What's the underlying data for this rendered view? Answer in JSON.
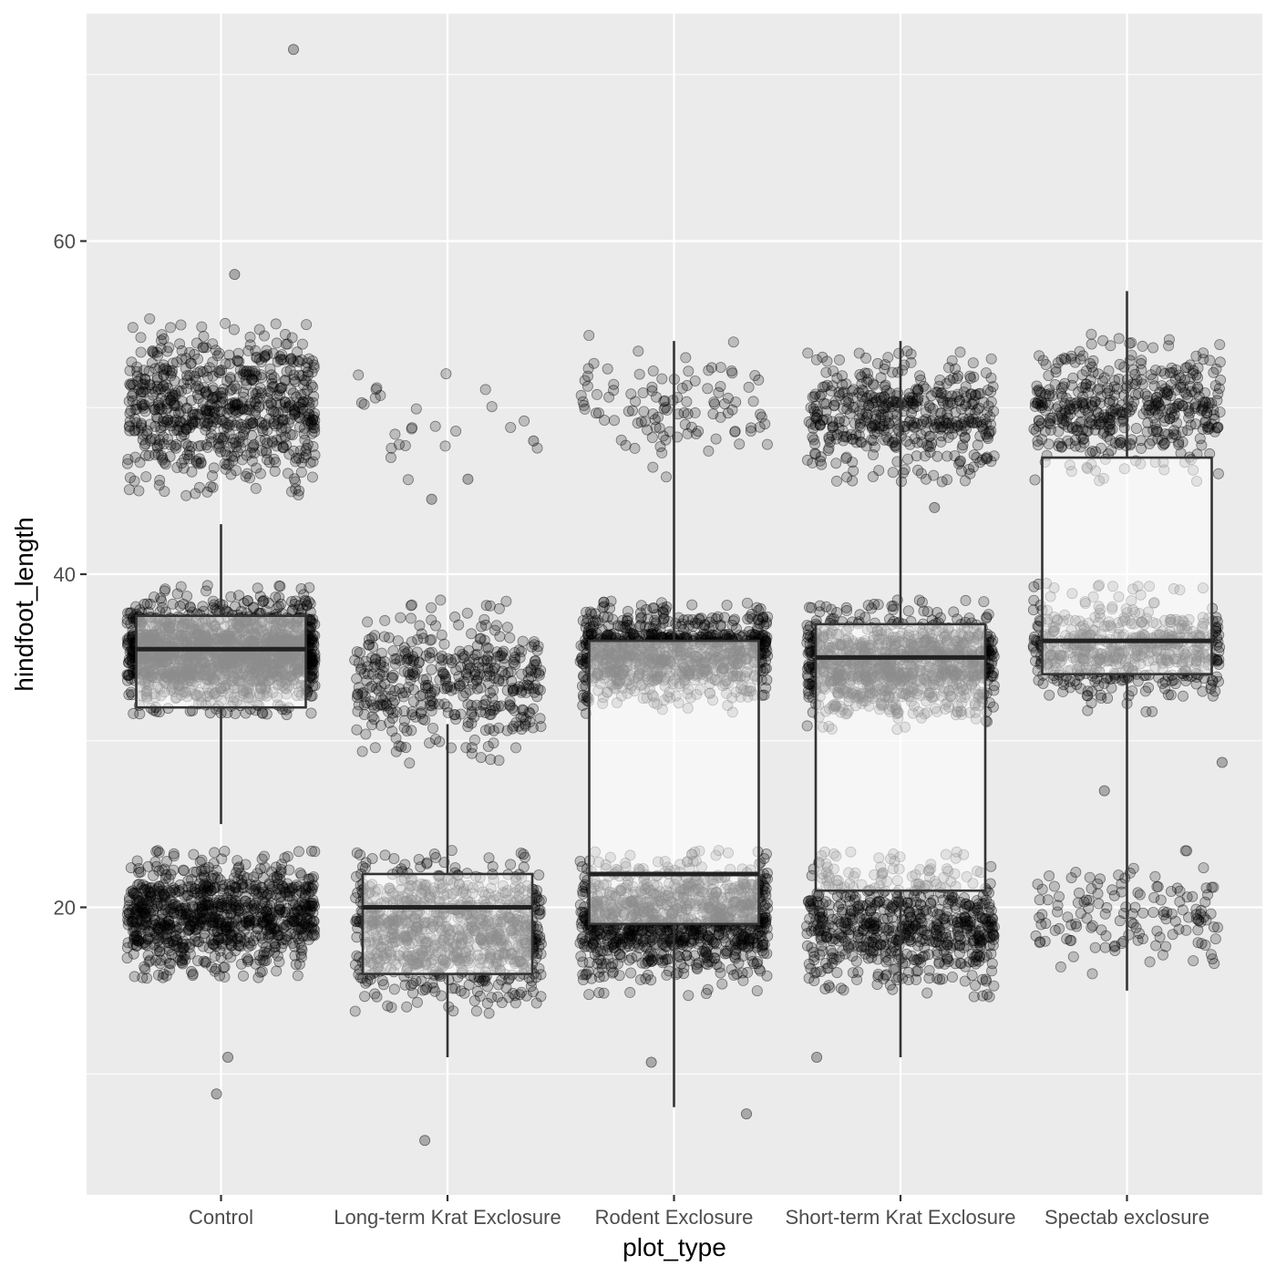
{
  "chart_data": {
    "type": "boxplot",
    "xlabel": "plot_type",
    "ylabel": "hindfoot_length",
    "categories": [
      "Control",
      "Long-term Krat Exclosure",
      "Rodent Exclosure",
      "Short-term Krat Exclosure",
      "Spectab exclosure"
    ],
    "ylim": [
      2,
      73
    ],
    "y_ticks": [
      20,
      40,
      60
    ],
    "y_tick_labels": [
      "20",
      "40",
      "60"
    ],
    "grid": true,
    "panel_background": "#ebebeb",
    "point_color": "#000000",
    "point_alpha": 0.2,
    "boxes": [
      {
        "category": "Control",
        "whisker_low": 25,
        "q1": 32,
        "median": 35.5,
        "q3": 37.5,
        "whisker_high": 43
      },
      {
        "category": "Long-term Krat Exclosure",
        "whisker_low": 11,
        "q1": 16,
        "median": 20,
        "q3": 22,
        "whisker_high": 31
      },
      {
        "category": "Rodent Exclosure",
        "whisker_low": 8,
        "q1": 19,
        "median": 22,
        "q3": 36,
        "whisker_high": 54
      },
      {
        "category": "Short-term Krat Exclosure",
        "whisker_low": 11,
        "q1": 21,
        "median": 35,
        "q3": 37,
        "whisker_high": 54
      },
      {
        "category": "Spectab exclosure",
        "whisker_low": 15,
        "q1": 34,
        "median": 36,
        "q3": 47,
        "whisker_high": 57
      }
    ],
    "point_clusters": [
      {
        "category": "Control",
        "y_center": 50,
        "y_spread": 3.5,
        "count": 700
      },
      {
        "category": "Control",
        "y_center": 35.3,
        "y_spread": 2.2,
        "count": 1600
      },
      {
        "category": "Control",
        "y_center": 19.5,
        "y_spread": 2.6,
        "count": 900
      },
      {
        "category": "Long-term Krat Exclosure",
        "y_center": 49.5,
        "y_spread": 2.5,
        "count": 25
      },
      {
        "category": "Long-term Krat Exclosure",
        "y_center": 33.5,
        "y_spread": 3.2,
        "count": 420
      },
      {
        "category": "Long-term Krat Exclosure",
        "y_center": 18.5,
        "y_spread": 3,
        "count": 900
      },
      {
        "category": "Rodent Exclosure",
        "y_center": 50,
        "y_spread": 2.5,
        "count": 110
      },
      {
        "category": "Rodent Exclosure",
        "y_center": 35.2,
        "y_spread": 2,
        "count": 900
      },
      {
        "category": "Rodent Exclosure",
        "y_center": 19.3,
        "y_spread": 2.7,
        "count": 1000
      },
      {
        "category": "Short-term Krat Exclosure",
        "y_center": 49.5,
        "y_spread": 2.6,
        "count": 450
      },
      {
        "category": "Short-term Krat Exclosure",
        "y_center": 34.5,
        "y_spread": 2.3,
        "count": 1000
      },
      {
        "category": "Short-term Krat Exclosure",
        "y_center": 19,
        "y_spread": 2.8,
        "count": 650
      },
      {
        "category": "Spectab exclosure",
        "y_center": 50,
        "y_spread": 2.8,
        "count": 450
      },
      {
        "category": "Spectab exclosure",
        "y_center": 35.5,
        "y_spread": 2.2,
        "count": 550
      },
      {
        "category": "Spectab exclosure",
        "y_center": 19.5,
        "y_spread": 2.6,
        "count": 140
      }
    ],
    "outlier_points": [
      {
        "category": "Control",
        "x_offset": 0.32,
        "y": 71.5
      },
      {
        "category": "Control",
        "x_offset": 0.06,
        "y": 58
      },
      {
        "category": "Control",
        "x_offset": -0.02,
        "y": 8.8
      },
      {
        "category": "Control",
        "x_offset": 0.03,
        "y": 11
      },
      {
        "category": "Long-term Krat Exclosure",
        "x_offset": -0.1,
        "y": 6
      },
      {
        "category": "Long-term Krat Exclosure",
        "x_offset": -0.07,
        "y": 44.5
      },
      {
        "category": "Long-term Krat Exclosure",
        "x_offset": 0.09,
        "y": 45.7
      },
      {
        "category": "Long-term Krat Exclosure",
        "x_offset": 0.38,
        "y": 48
      },
      {
        "category": "Rodent Exclosure",
        "x_offset": 0.32,
        "y": 7.6
      },
      {
        "category": "Rodent Exclosure",
        "x_offset": -0.1,
        "y": 10.7
      },
      {
        "category": "Short-term Krat Exclosure",
        "x_offset": -0.37,
        "y": 11
      },
      {
        "category": "Short-term Krat Exclosure",
        "x_offset": 0.15,
        "y": 44
      },
      {
        "category": "Spectab exclosure",
        "x_offset": 0.42,
        "y": 28.7
      },
      {
        "category": "Spectab exclosure",
        "x_offset": -0.1,
        "y": 27
      }
    ]
  }
}
